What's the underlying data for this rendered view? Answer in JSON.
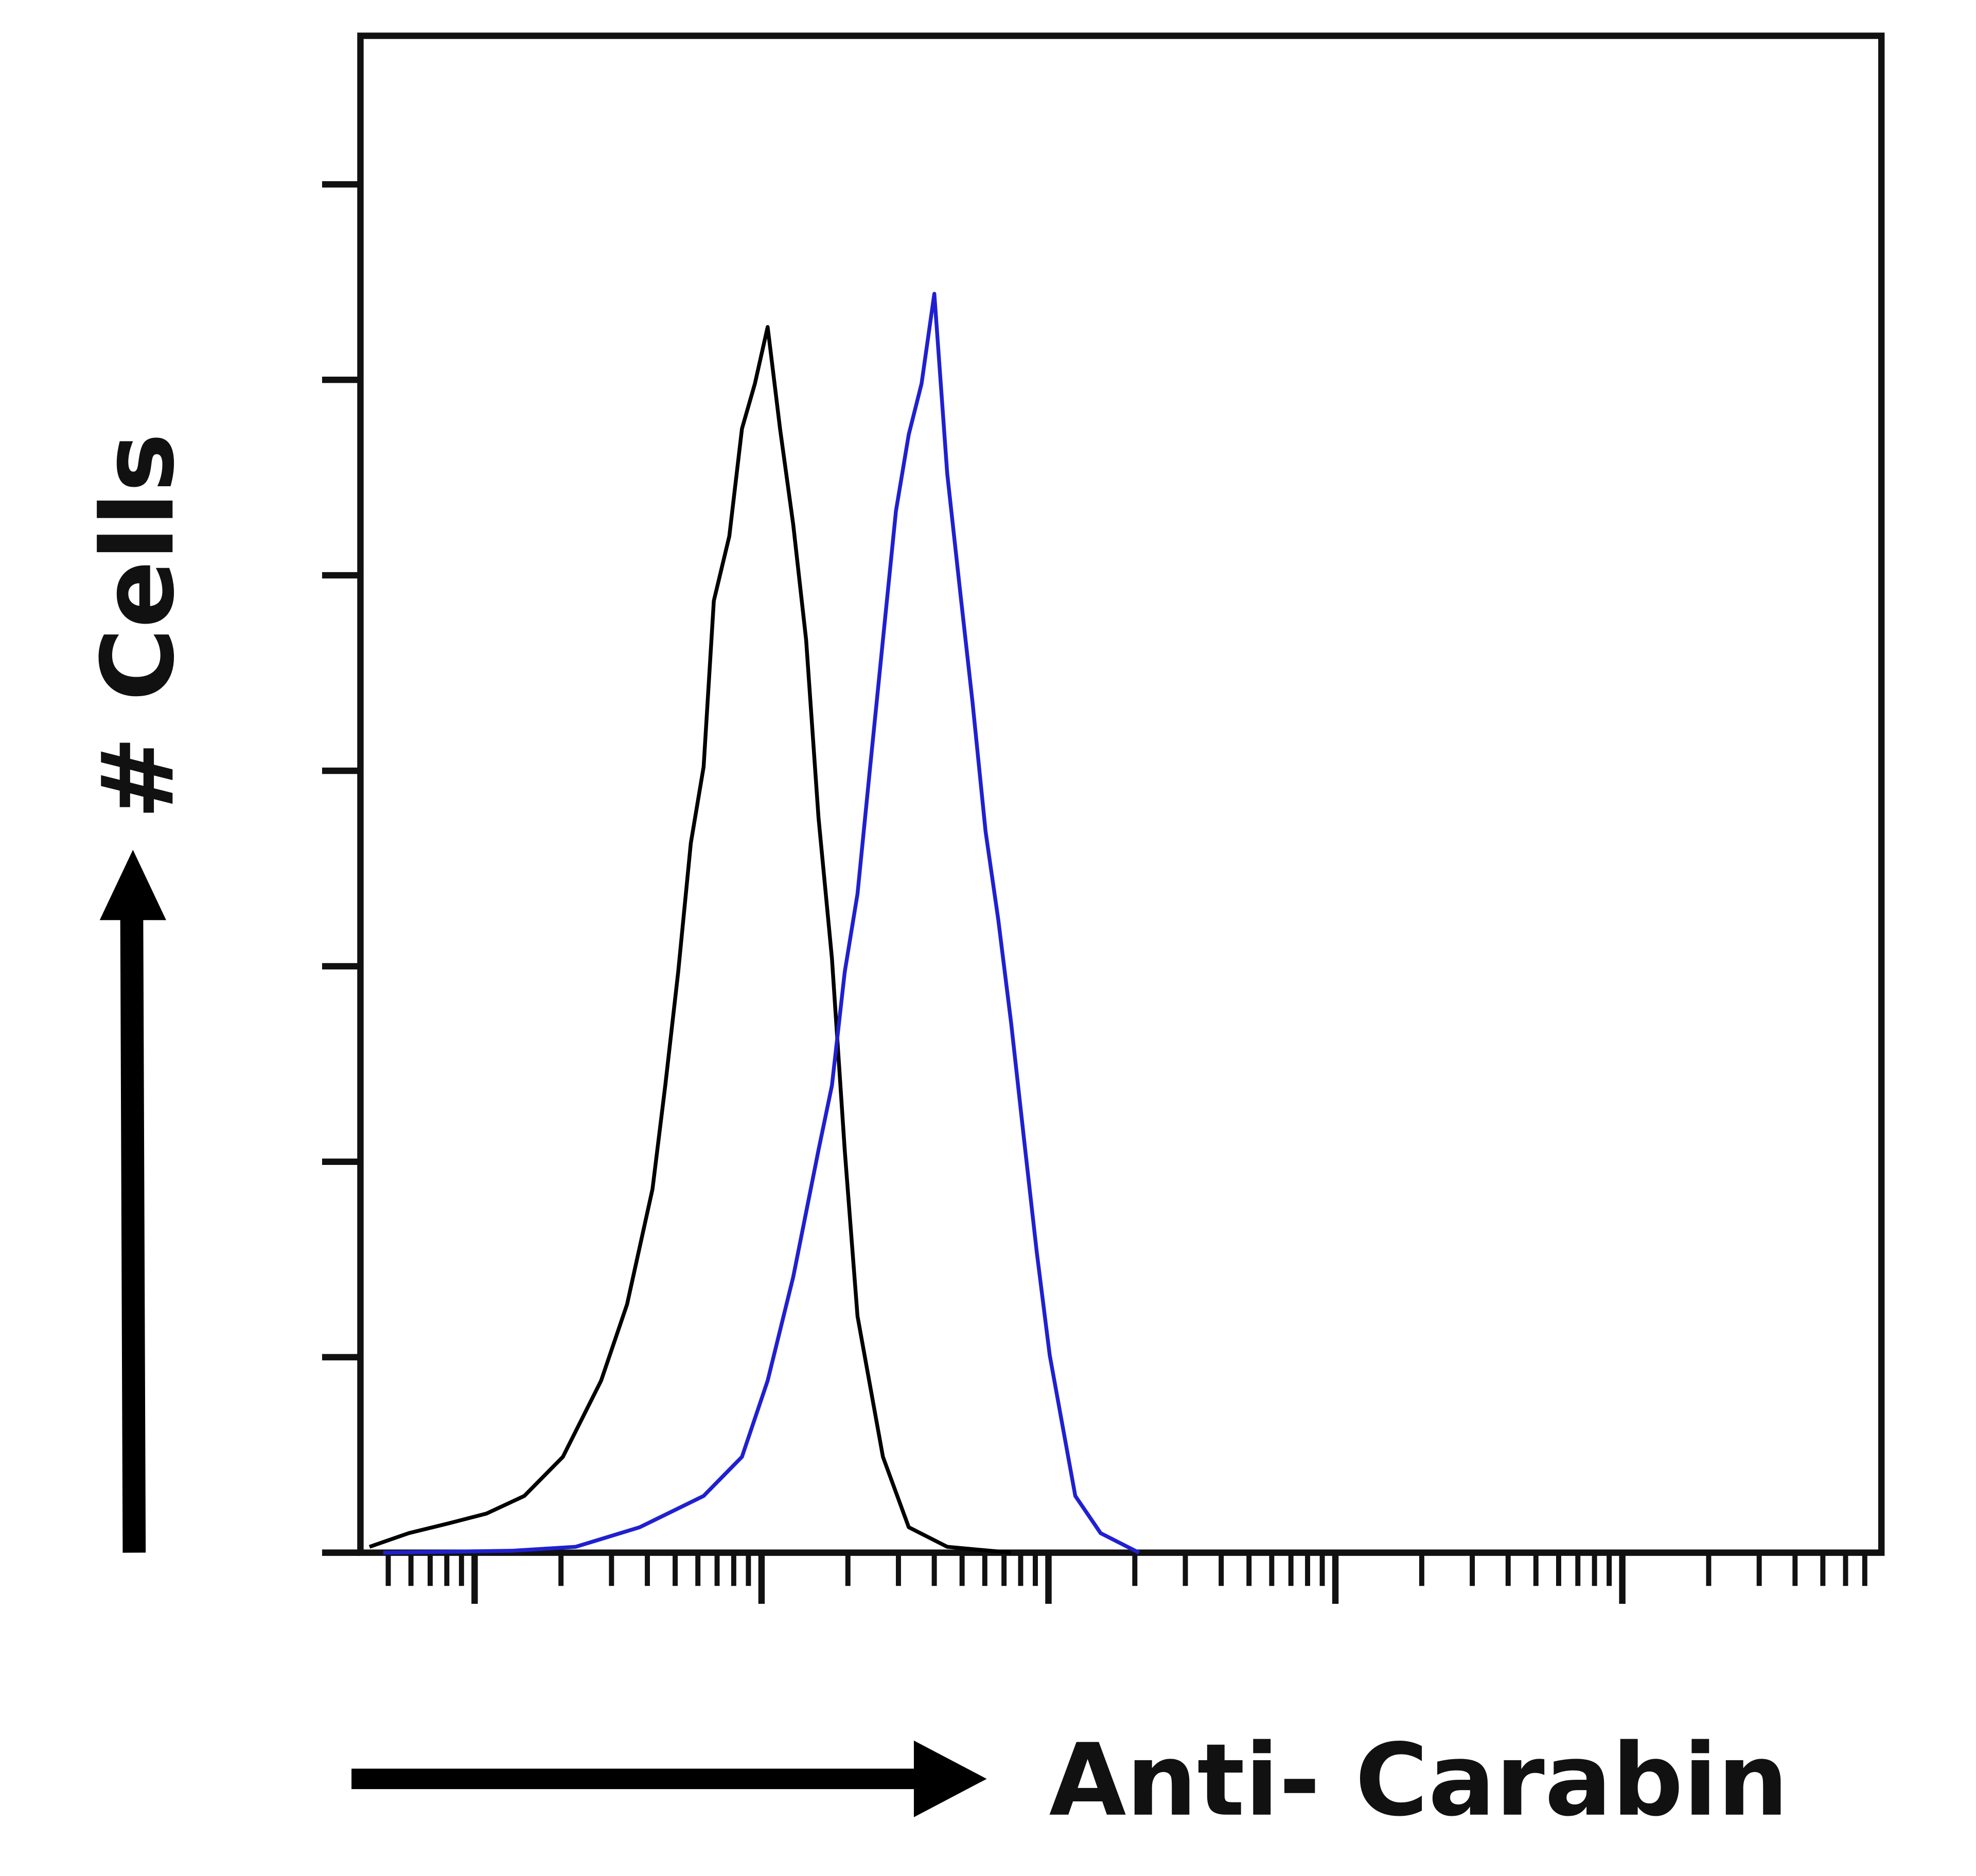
{
  "chart_data": {
    "type": "line",
    "x_label": "Anti- Carabin",
    "y_label": "# Cells",
    "xscale": "log",
    "xlim": [
      0.4,
      80000
    ],
    "ylim": [
      0,
      7.76
    ],
    "xticks": [
      0.5,
      0.6,
      0.7,
      0.8,
      0.9,
      1,
      2,
      3,
      4,
      5,
      6,
      7,
      8,
      9,
      10,
      20,
      30,
      40,
      50,
      60,
      70,
      80,
      90,
      100,
      200,
      300,
      400,
      500,
      600,
      700,
      800,
      900,
      1000,
      2000,
      3000,
      4000,
      5000,
      6000,
      7000,
      8000,
      9000,
      10000,
      20000,
      30000,
      40000,
      50000,
      60000,
      70000
    ],
    "yticks": [
      0,
      1,
      2,
      3,
      4,
      5,
      6,
      7
    ],
    "series": [
      {
        "color": "#000000",
        "x": [
          0.43,
          0.59,
          0.81,
          1.1,
          1.49,
          2.03,
          2.76,
          3.4,
          4.17,
          4.62,
          5.12,
          5.67,
          6.28,
          6.82,
          7.72,
          8.55,
          9.48,
          10.5,
          11.6,
          12.9,
          14.3,
          15.8,
          17.6,
          19.5,
          21.6,
          26.5,
          32.6,
          44.4,
          74.1
        ],
        "values": [
          0.03,
          0.1,
          0.15,
          0.2,
          0.29,
          0.49,
          0.88,
          1.27,
          1.86,
          2.39,
          2.97,
          3.63,
          4.02,
          4.87,
          5.2,
          5.75,
          5.98,
          6.27,
          5.75,
          5.26,
          4.67,
          3.76,
          3.04,
          2.06,
          1.21,
          0.49,
          0.13,
          0.03,
          0
        ]
      },
      {
        "color": "#2020d0",
        "x": [
          0.48,
          1.35,
          2.25,
          3.76,
          6.28,
          8.55,
          10.5,
          12.9,
          15.8,
          17.6,
          19.5,
          21.6,
          23.9,
          26.5,
          29.4,
          32.6,
          36.1,
          40.0,
          44.4,
          49.1,
          54.4,
          60.4,
          66.8,
          74.1,
          82.1,
          91.0,
          101,
          124,
          152,
          207
        ],
        "values": [
          0,
          0.01,
          0.03,
          0.13,
          0.29,
          0.49,
          0.88,
          1.41,
          2.06,
          2.39,
          2.97,
          3.37,
          4.02,
          4.67,
          5.33,
          5.72,
          5.98,
          6.44,
          5.52,
          4.93,
          4.35,
          3.69,
          3.24,
          2.71,
          2.12,
          1.54,
          1.01,
          0.29,
          0.1,
          0
        ]
      }
    ]
  }
}
